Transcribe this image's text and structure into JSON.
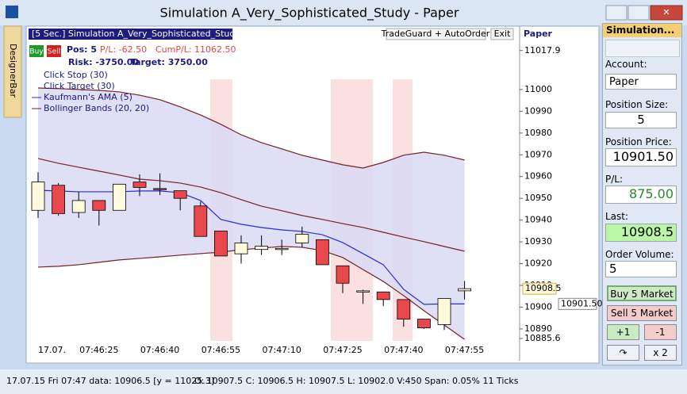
{
  "window": {
    "title": "Simulation  A_Very_Sophisticated_Study - Paper",
    "side_bar": "DesignerBar"
  },
  "chart_header": {
    "caption": "[5 Sec.] Simulation A_Very_Sophisticated_Study",
    "tradeguard": "TradeGuard + AutoOrder",
    "exit": "Exit",
    "account": "Paper",
    "buy": "Buy",
    "sell": "Sell",
    "position": "Pos: 5",
    "pl": "P/L: -62.50",
    "cum_pl": "CumP/L: 11062.50",
    "risk": "Risk: -3750.00",
    "target": "Target: 3750.00"
  },
  "studies": [
    "Click Stop  (30)",
    "Click Target  (30)"
  ],
  "panel": {
    "title": "Simulation...",
    "account_label": "Account:",
    "account": "Paper",
    "size_label": "Position Size:",
    "size": "5",
    "price_label": "Position Price:",
    "price": "10901.50",
    "pl_label": "P/L:",
    "pl": "875.00",
    "last_label": "Last:",
    "last": "10908.5",
    "volume_label": "Order Volume:",
    "volume": "5",
    "buy": "Buy 5 Market",
    "sell": "Sell 5 Market",
    "plus": "+1",
    "minus": "-1",
    "reverse": "↷",
    "double": "x 2"
  },
  "status": {
    "left": "17.07.15 Fri  07:47 data: 10906.5 [y = 11025.3]",
    "right": "O: 10907.5 C: 10906.5 H: 10907.5 L: 10902.0 V:450 Span: 0.05% 11 Ticks"
  },
  "chart_data": {
    "type": "candlestick",
    "date_label": "17.07.",
    "categories": [
      null,
      null,
      null,
      "07:46:25",
      null,
      null,
      "07:46:40",
      null,
      null,
      "07:46:55",
      null,
      null,
      "07:47:10",
      null,
      null,
      "07:47:25",
      null,
      null,
      "07:47:40",
      null,
      null,
      "07:47:55"
    ],
    "open": [
      10944.5,
      10956,
      10943.5,
      10949,
      10944.5,
      10957.5,
      10954.5,
      10953.5,
      10946.5,
      10935,
      10924.5,
      10926.5,
      10927,
      10929.5,
      10931,
      10919,
      10907.5,
      10907,
      10903.5,
      10894.5,
      10892,
      10907.5
    ],
    "high": [
      10962,
      10957,
      10953,
      10949,
      10956.5,
      10961,
      10961.5,
      10953.5,
      10948.5,
      10935,
      10933,
      10933,
      10931,
      10937,
      10931,
      10919,
      10908,
      10907,
      10903.5,
      10894.5,
      10904,
      10912
    ],
    "low": [
      10941,
      10942,
      10941,
      10937.5,
      10944.5,
      10951,
      10951.5,
      10944.5,
      10932.5,
      10923.5,
      10920,
      10924,
      10924,
      10927.5,
      10919.5,
      10906.5,
      10901.5,
      10900.5,
      10891,
      10890,
      10889.5,
      10903.5
    ],
    "close": [
      10957.5,
      10943,
      10949,
      10944.5,
      10956.5,
      10955,
      10954,
      10950,
      10932.5,
      10923.5,
      10929.5,
      10928,
      10927,
      10933.5,
      10919.5,
      10911,
      10907.5,
      10903.5,
      10894.5,
      10890.5,
      10904,
      10908.5
    ],
    "up_color": "#fffbdc",
    "down_color": "#e8474c",
    "series": [
      {
        "name": "Kaufmann's AMA  (5)",
        "color": "#2b2bd6",
        "values": [
          10953.7,
          10953.4,
          10953,
          10953,
          10953,
          10953.4,
          10953.4,
          10952.6,
          10949,
          10940.3,
          10938.1,
          10936.6,
          10935.5,
          10934.8,
          10933.3,
          10929.7,
          10924.6,
          10919.5,
          10908.2,
          10901.3,
          10901.5,
          10901.5
        ]
      }
    ],
    "bands": {
      "name": "Bollinger Bands  (20, 20)",
      "color": "#7a1f24",
      "fill": "#d9d9f5",
      "upper": [
        11000.7,
        11000.4,
        11000,
        10999.6,
        10998.9,
        10997.4,
        10995.3,
        10992,
        10988.3,
        10984,
        10979.2,
        10975.6,
        10972.7,
        10969.8,
        10967.6,
        10965.4,
        10963.9,
        10966.5,
        10969.8,
        10971.2,
        10969.8,
        10967.6
      ],
      "middle": [
        10968.3,
        10966.1,
        10964.3,
        10962.5,
        10960.7,
        10958.8,
        10958.1,
        10957,
        10955.2,
        10952.6,
        10949.4,
        10946.4,
        10944.3,
        10942.1,
        10940.3,
        10938.4,
        10936.6,
        10934.4,
        10932.2,
        10930.1,
        10927.9,
        10925.7
      ],
      "lower": [
        10918.4,
        10918.8,
        10919.5,
        10920.6,
        10921.7,
        10922.4,
        10923.1,
        10923.9,
        10924.6,
        10925.3,
        10926.4,
        10927.1,
        10927.9,
        10927.5,
        10926,
        10922.8,
        10917.3,
        10911.8,
        10905.3,
        10898.4,
        10891.8,
        10885.2
      ]
    },
    "ylim": [
      10875.4,
      11029.1
    ],
    "yticks": [
      11017.9,
      11000,
      10990,
      10980,
      10970,
      10960,
      10950,
      10940,
      10930,
      10920,
      10910,
      10900,
      10890,
      10885.6
    ],
    "last_price": 10908.5,
    "ama_price": {
      "value": 10901.5,
      "label": "10901.50"
    }
  }
}
